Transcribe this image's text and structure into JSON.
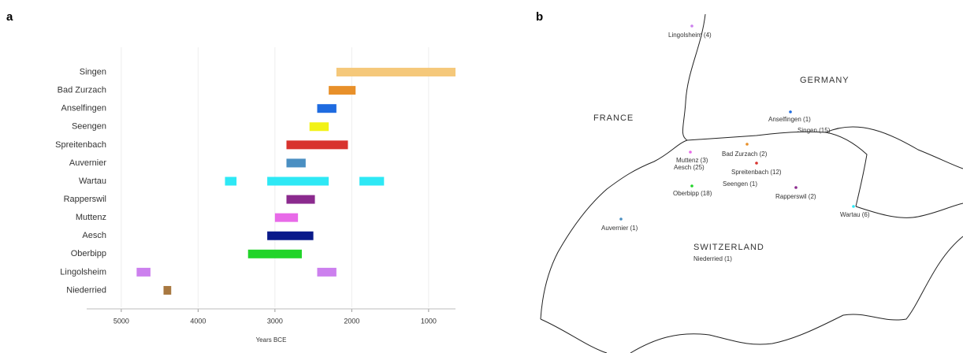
{
  "panel_labels": [
    "a",
    "b"
  ],
  "chart_data": [
    {
      "type": "range-bar",
      "x_label": "Years BCE",
      "xlim": [
        5450,
        650
      ],
      "xticks": [
        5000,
        4000,
        3000,
        2000,
        1000
      ],
      "grid": true,
      "categories": [
        "Singen",
        "Bad Zurzach",
        "Anselfingen",
        "Seengen",
        "Spreitenbach",
        "Auvernier",
        "Wartau",
        "Rapperswil",
        "Muttenz",
        "Aesch",
        "Oberbipp",
        "Lingolsheim",
        "Niederried"
      ],
      "colors": [
        "#f5c87a",
        "#e8902a",
        "#1e6be0",
        "#f2f216",
        "#d8332e",
        "#4a8fc2",
        "#2ee8f5",
        "#8b2a8e",
        "#e86ae8",
        "#0a1a8a",
        "#22d42a",
        "#cc80ee",
        "#a87840"
      ],
      "ranges": [
        [
          [
            2200,
            650
          ]
        ],
        [
          [
            2300,
            1950
          ]
        ],
        [
          [
            2450,
            2200
          ]
        ],
        [
          [
            2550,
            2300
          ]
        ],
        [
          [
            2850,
            2050
          ]
        ],
        [
          [
            2850,
            2600
          ]
        ],
        [
          [
            3650,
            3500
          ],
          [
            3100,
            2300
          ],
          [
            1900,
            1580
          ]
        ],
        [
          [
            2850,
            2480
          ]
        ],
        [
          [
            3000,
            2700
          ]
        ],
        [
          [
            3100,
            2500
          ]
        ],
        [
          [
            3350,
            2650
          ]
        ],
        [
          [
            4800,
            4620
          ],
          [
            2450,
            2200
          ]
        ],
        [
          [
            4450,
            4350
          ]
        ]
      ]
    },
    {
      "type": "map",
      "regions": [
        "FRANCE",
        "GERMANY",
        "SWITZERLAND"
      ],
      "sites": [
        {
          "label": "Lingolsheim (4)",
          "color": "#cc80ee"
        },
        {
          "label": "Anselfingen (1)",
          "color": "#1e6be0"
        },
        {
          "label": "Singen (15)",
          "color": "#f5c87a"
        },
        {
          "label": "Bad Zurzach (2)",
          "color": "#e8902a"
        },
        {
          "label": "Muttenz (3)",
          "color": "#e86ae8"
        },
        {
          "label": "Aesch (25)",
          "color": "#0a1a8a"
        },
        {
          "label": "Spreitenbach (12)",
          "color": "#d8332e"
        },
        {
          "label": "Seengen (1)",
          "color": "#f2f216"
        },
        {
          "label": "Oberbipp (18)",
          "color": "#22d42a"
        },
        {
          "label": "Rapperswil (2)",
          "color": "#8b2a8e"
        },
        {
          "label": "Wartau (6)",
          "color": "#2ee8f5"
        },
        {
          "label": "Auvernier (1)",
          "color": "#4a8fc2"
        },
        {
          "label": "Niederried (1)",
          "color": "#a87840"
        }
      ]
    }
  ]
}
